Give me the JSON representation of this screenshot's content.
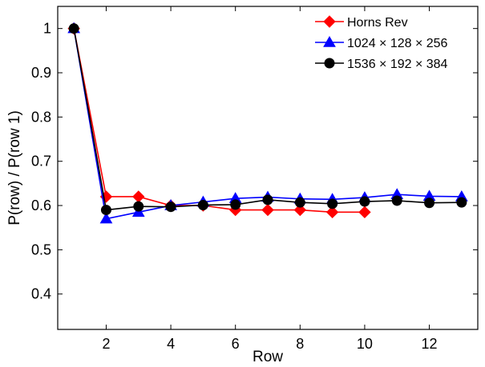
{
  "chart_data": {
    "type": "line",
    "xlabel": "Row",
    "ylabel": "P(row) / P(row 1)",
    "xlim": [
      0.5,
      13.5
    ],
    "ylim": [
      0.32,
      1.05
    ],
    "xticks": [
      2,
      4,
      6,
      8,
      10,
      12
    ],
    "yticks": [
      0.4,
      0.5,
      0.6,
      0.7,
      0.8,
      0.9,
      1
    ],
    "xtick_labels": [
      "2",
      "4",
      "6",
      "8",
      "10",
      "12"
    ],
    "ytick_labels": [
      "0.4",
      "0.5",
      "0.6",
      "0.7",
      "0.8",
      "0.9",
      "1"
    ],
    "grid": false,
    "legend_position": "top-right",
    "series": [
      {
        "name": "Horns Rev",
        "color": "#ff0000",
        "marker": "diamond",
        "x": [
          1,
          2,
          3,
          4,
          5,
          6,
          7,
          8,
          9,
          10
        ],
        "values": [
          1.0,
          0.62,
          0.62,
          0.6,
          0.6,
          0.59,
          0.59,
          0.59,
          0.585,
          0.585
        ]
      },
      {
        "name": "1024 × 128 × 256",
        "color": "#0000ff",
        "marker": "triangle",
        "x": [
          1,
          2,
          3,
          4,
          5,
          6,
          7,
          8,
          9,
          10,
          11,
          12,
          13
        ],
        "values": [
          1.0,
          0.57,
          0.585,
          0.6,
          0.608,
          0.616,
          0.619,
          0.615,
          0.614,
          0.618,
          0.625,
          0.621,
          0.62
        ]
      },
      {
        "name": "1536 × 192 × 384",
        "color": "#000000",
        "marker": "circle",
        "x": [
          1,
          2,
          3,
          4,
          5,
          6,
          7,
          8,
          9,
          10,
          11,
          12,
          13
        ],
        "values": [
          1.0,
          0.59,
          0.598,
          0.597,
          0.601,
          0.602,
          0.613,
          0.607,
          0.604,
          0.609,
          0.611,
          0.606,
          0.607
        ]
      }
    ]
  }
}
